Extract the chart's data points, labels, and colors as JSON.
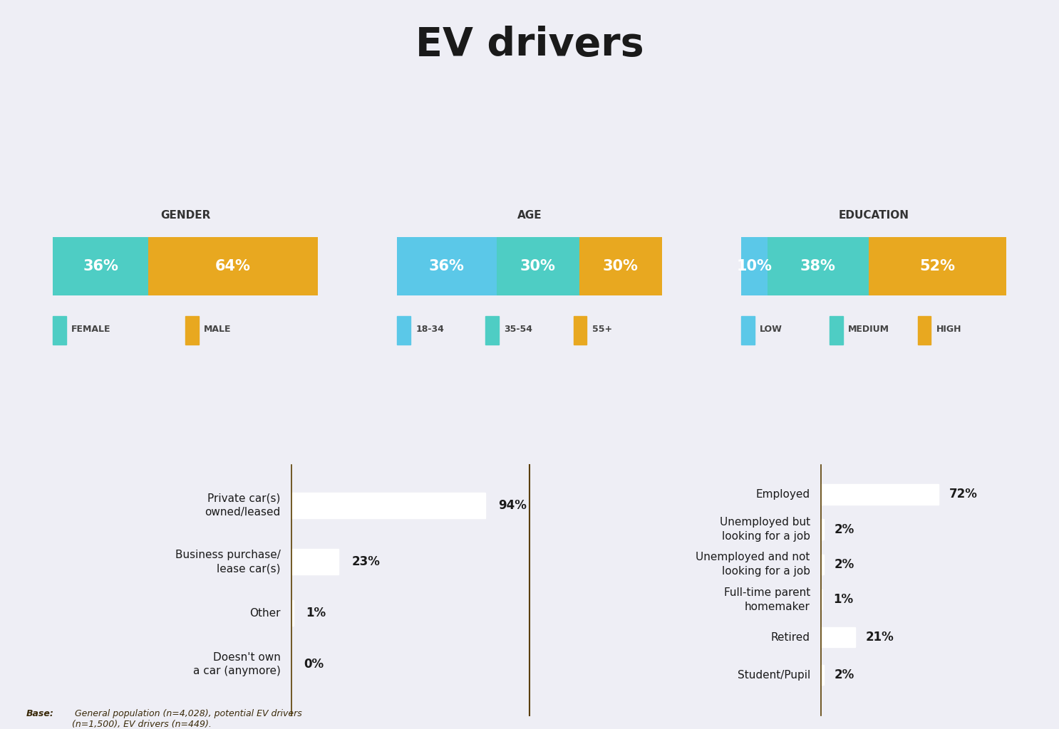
{
  "title": "EV drivers",
  "title_color": "#1a1a1a",
  "top_bg_color": "#eeeef5",
  "bottom_bg_color": "#e8a820",
  "gold_line_color": "#c8941a",
  "gender_label": "GENDER",
  "gender_segments": [
    36,
    64
  ],
  "gender_colors": [
    "#4ecdc4",
    "#e8a820"
  ],
  "gender_text_labels": [
    "36%",
    "64%"
  ],
  "gender_legend": [
    "FEMALE",
    "MALE"
  ],
  "age_label": "AGE",
  "age_segments": [
    36,
    30,
    30
  ],
  "age_colors": [
    "#5bc8e8",
    "#4ecdc4",
    "#e8a820"
  ],
  "age_text_labels": [
    "36%",
    "30%",
    "30%"
  ],
  "age_legend": [
    "18-34",
    "35-54",
    "55+"
  ],
  "edu_label": "EDUCATION",
  "edu_segments": [
    10,
    38,
    52
  ],
  "edu_colors": [
    "#5bc8e8",
    "#4ecdc4",
    "#e8a820"
  ],
  "edu_text_labels": [
    "10%",
    "38%",
    "52%"
  ],
  "edu_legend": [
    "LOW",
    "MEDIUM",
    "HIGH"
  ],
  "car_categories": [
    "Private car(s)\nowned/leased",
    "Business purchase/\nlease car(s)",
    "Other",
    "Doesn't own\na car (anymore)"
  ],
  "car_values": [
    94,
    23,
    1,
    0
  ],
  "employment_categories": [
    "Employed",
    "Unemployed but\nlooking for a job",
    "Unemployed and not\nlooking for a job",
    "Full-time parent\nhomemaker",
    "Retired",
    "Student/Pupil"
  ],
  "employment_values": [
    72,
    2,
    2,
    1,
    21,
    2
  ],
  "bar_color": "#ffffff",
  "bar_text_color": "#1a1a1a",
  "category_text_color": "#1a1a1a",
  "footnote_bold": "Base:",
  "footnote_text": " General population (n=4,028), potential EV drivers\n(n=1,500), EV drivers (n=449)."
}
